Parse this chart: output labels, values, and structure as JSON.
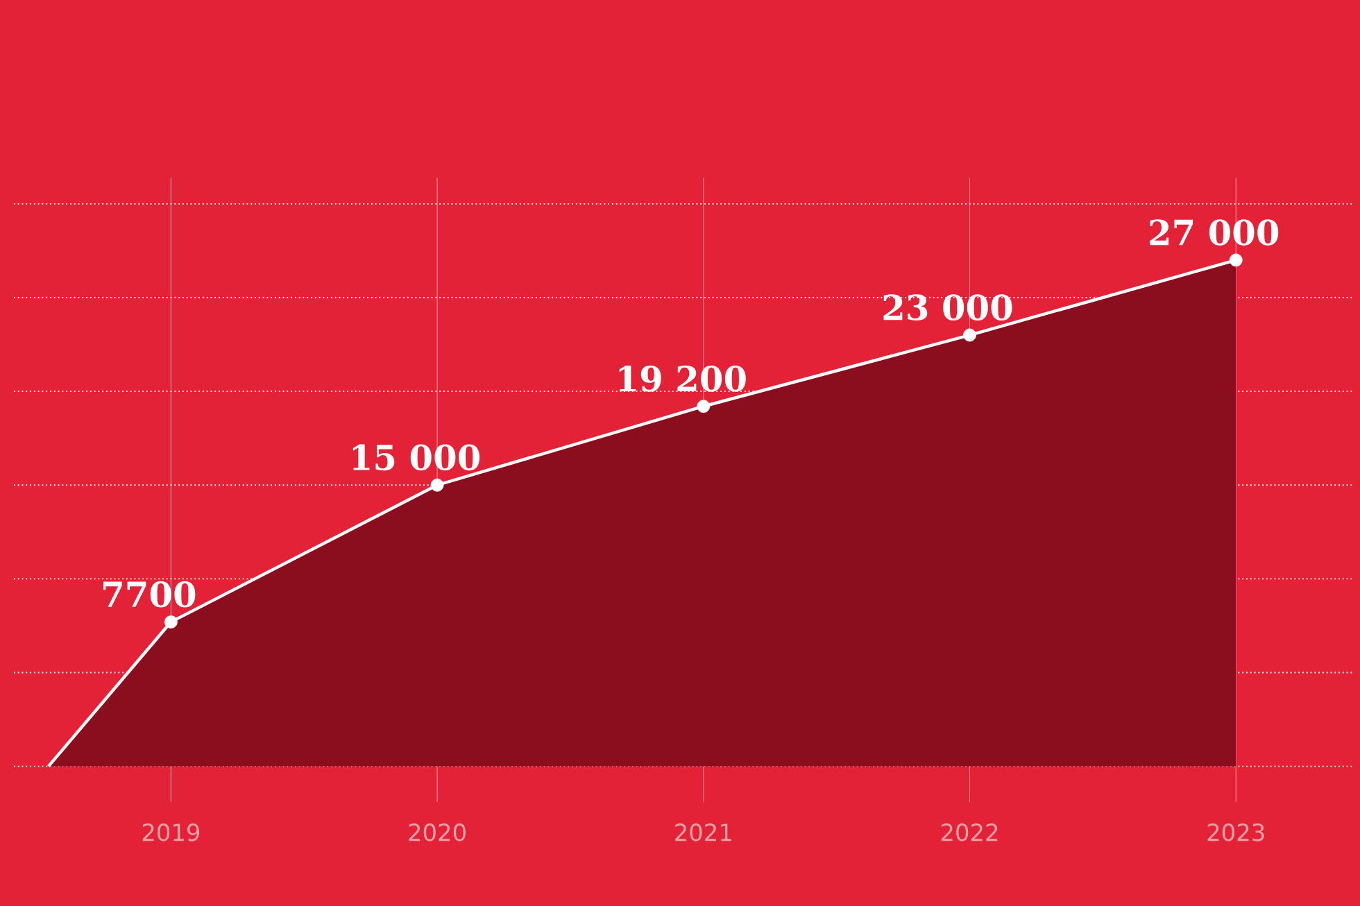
{
  "chart_data": {
    "type": "area",
    "x": [
      2018.54,
      2019,
      2020,
      2021,
      2022,
      2023
    ],
    "values": [
      0,
      7700,
      15000,
      19200,
      23000,
      27000
    ],
    "value_labels": [
      null,
      "7700",
      "15 000",
      "19 200",
      "23 000",
      "27 000"
    ],
    "color": "#8b0e1e",
    "marker": "circle",
    "xlim": [
      2018.41,
      2023.44
    ],
    "ylim": [
      -1900,
      31400
    ],
    "xticks": [
      2019,
      2020,
      2021,
      2022,
      2023
    ],
    "yticks": [
      {
        "value": 0,
        "label": null
      },
      {
        "value": 5000,
        "label": null
      },
      {
        "value": 10000,
        "label": null
      },
      {
        "value": 15000,
        "label": null
      },
      {
        "value": 20000,
        "label": null
      },
      {
        "value": 25000,
        "label": null
      },
      {
        "value": 30000,
        "label": null
      }
    ],
    "tick_labels": "x",
    "grid": true
  }
}
